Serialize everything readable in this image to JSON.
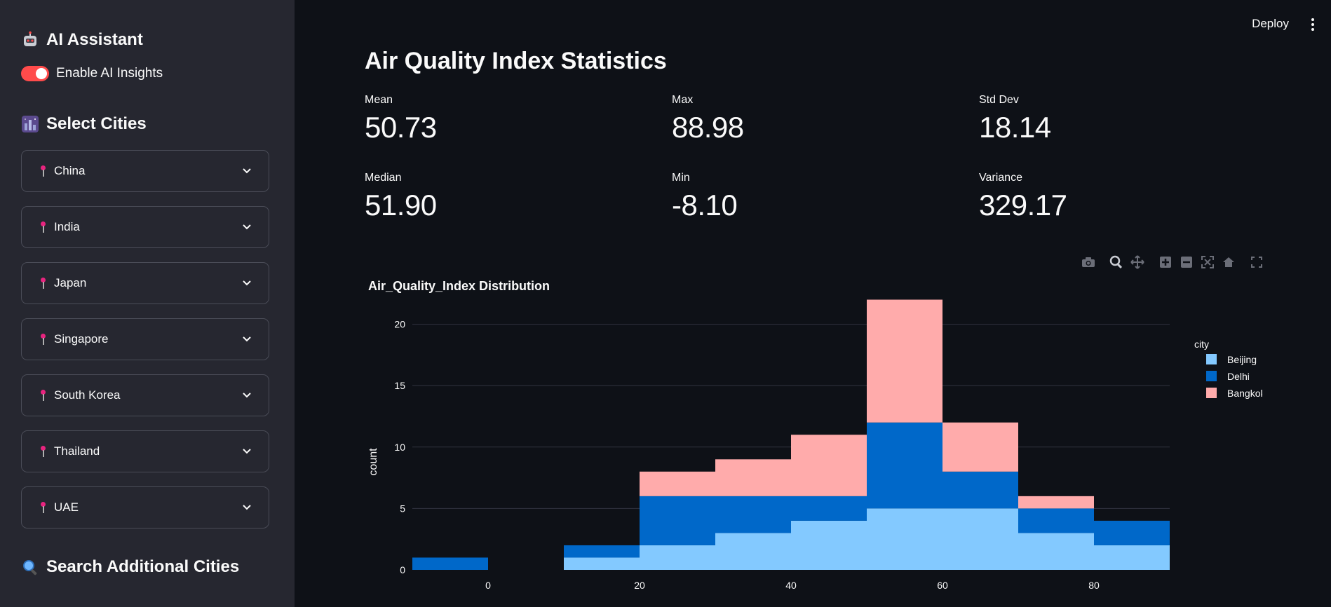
{
  "sidebar": {
    "ai_title": "AI Assistant",
    "toggle_label": "Enable AI Insights",
    "toggle_on": true,
    "cities_title": "Select Cities",
    "countries": [
      "China",
      "India",
      "Japan",
      "Singapore",
      "South Korea",
      "Thailand",
      "UAE"
    ],
    "search_title": "Search Additional Cities"
  },
  "header": {
    "deploy_label": "Deploy"
  },
  "main": {
    "title": "Air Quality Index Statistics",
    "metrics": [
      {
        "label": "Mean",
        "value": "50.73"
      },
      {
        "label": "Max",
        "value": "88.98"
      },
      {
        "label": "Std Dev",
        "value": "18.14"
      },
      {
        "label": "Median",
        "value": "51.90"
      },
      {
        "label": "Min",
        "value": "-8.10"
      },
      {
        "label": "Variance",
        "value": "329.17"
      }
    ]
  },
  "colors": {
    "accent": "#ff4b4b",
    "beijing": "#83c9ff",
    "delhi": "#0068c9",
    "bangkok": "#ffabab"
  },
  "chart_data": {
    "type": "bar",
    "title": "Air_Quality_Index Distribution",
    "ylabel": "count",
    "legend_title": "city",
    "legend_position": "top-right",
    "bins": [
      [
        -10,
        0
      ],
      [
        0,
        10
      ],
      [
        10,
        20
      ],
      [
        20,
        30
      ],
      [
        30,
        40
      ],
      [
        40,
        50
      ],
      [
        50,
        60
      ],
      [
        60,
        70
      ],
      [
        70,
        80
      ],
      [
        80,
        90
      ]
    ],
    "xlim": [
      -10,
      90
    ],
    "ylim": [
      0,
      23
    ],
    "xticks": [
      0,
      20,
      40,
      60,
      80
    ],
    "yticks": [
      0,
      5,
      10,
      15,
      20
    ],
    "grid": true,
    "series": [
      {
        "name": "Beijing",
        "values": [
          0,
          0,
          1,
          2,
          3,
          4,
          5,
          5,
          3,
          2
        ]
      },
      {
        "name": "Delhi",
        "values": [
          1,
          0,
          1,
          4,
          3,
          2,
          7,
          3,
          2,
          2
        ]
      },
      {
        "name": "Bangkok",
        "values": [
          0,
          0,
          0,
          2,
          3,
          5,
          10,
          4,
          1,
          0
        ]
      }
    ]
  }
}
